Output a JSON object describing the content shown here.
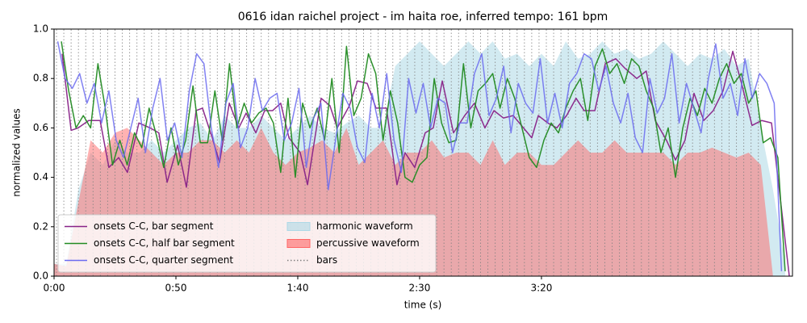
{
  "chart_data": {
    "type": "line",
    "title": "0616 idan raichel project - im haita roe, inferred tempo: 161 bpm",
    "x_label": "time (s)",
    "y_label": "normalized values",
    "xlim": [
      0,
      303
    ],
    "ylim": [
      0,
      1
    ],
    "xticks": [
      {
        "value": 0,
        "label": "0:00"
      },
      {
        "value": 50,
        "label": "0:50"
      },
      {
        "value": 100,
        "label": "1:40"
      },
      {
        "value": 150,
        "label": "2:30"
      },
      {
        "value": 200,
        "label": "3:20"
      }
    ],
    "yticks": [
      {
        "value": 0,
        "label": "0.0"
      },
      0.2,
      0.4,
      0.6,
      0.8,
      {
        "value": 1,
        "label": "1.0"
      }
    ],
    "legend": "lower left",
    "legend_columns": 2,
    "x": [
      0,
      5,
      10,
      15,
      20,
      25,
      30,
      35,
      40,
      45,
      50,
      55,
      60,
      65,
      70,
      75,
      80,
      85,
      90,
      95,
      100,
      105,
      110,
      115,
      120,
      125,
      130,
      135,
      140,
      145,
      150,
      155,
      160,
      165,
      170,
      175,
      180,
      185,
      190,
      195,
      200,
      205,
      210,
      215,
      220,
      225,
      230,
      235,
      240,
      245,
      250,
      255,
      260,
      265,
      270,
      275,
      280,
      285,
      290,
      295,
      300
    ],
    "series": [
      {
        "name": "onsets C-C, bar segment",
        "color": "#882288",
        "style": "line",
        "x": [
          3.3,
          7.0,
          9.9,
          14.2,
          18.9,
          22.5,
          26.5,
          30.1,
          34.8,
          39.4,
          43.0,
          46.4,
          50.7,
          54.3,
          58.3,
          60.9,
          64.9,
          67.9,
          71.9,
          75.8,
          78.8,
          82.8,
          86.4,
          89.7,
          93.0,
          96.4,
          101.0,
          104.0,
          109.6,
          113.2,
          116.2,
          121.2,
          124.5,
          128.5,
          132.1,
          136.4,
          140.7,
          144.0,
          148.0,
          152.3,
          155.6,
          159.3,
          163.9,
          168.5,
          172.5,
          176.8,
          180.5,
          184.4,
          188.4,
          196.0,
          198.7,
          202.6,
          206.3,
          210.3,
          214.2,
          217.5,
          221.9,
          226.2,
          230.5,
          234.4,
          239.1,
          243.0,
          246.7,
          251.3,
          255.0,
          258.9,
          262.6,
          266.6,
          270.5,
          274.5,
          278.5,
          282.1,
          286.4,
          290.4,
          294.4,
          301.7
        ],
        "values": [
          0.9,
          0.59,
          0.6,
          0.63,
          0.63,
          0.44,
          0.48,
          0.42,
          0.62,
          0.6,
          0.58,
          0.38,
          0.53,
          0.36,
          0.67,
          0.68,
          0.56,
          0.46,
          0.7,
          0.6,
          0.66,
          0.58,
          0.67,
          0.67,
          0.7,
          0.56,
          0.5,
          0.37,
          0.72,
          0.69,
          0.6,
          0.69,
          0.79,
          0.78,
          0.68,
          0.68,
          0.37,
          0.5,
          0.44,
          0.58,
          0.6,
          0.79,
          0.58,
          0.65,
          0.7,
          0.6,
          0.67,
          0.64,
          0.65,
          0.56,
          0.65,
          0.62,
          0.6,
          0.65,
          0.72,
          0.67,
          0.67,
          0.86,
          0.88,
          0.84,
          0.8,
          0.83,
          0.63,
          0.55,
          0.47,
          0.55,
          0.74,
          0.63,
          0.67,
          0.75,
          0.91,
          0.78,
          0.61,
          0.63,
          0.62,
          0.0
        ]
      },
      {
        "name": "onsets C-C, half bar segment",
        "color": "#228b22",
        "style": "line",
        "x": [
          3,
          6,
          9,
          12,
          15,
          18,
          21,
          24,
          27,
          30,
          33,
          36,
          39,
          42,
          45,
          48,
          51,
          54,
          57,
          60,
          63,
          66,
          69,
          72,
          75,
          78,
          81,
          84,
          87,
          90,
          93,
          96,
          99,
          102,
          105,
          108,
          111,
          114,
          117,
          120,
          123,
          126,
          129,
          132,
          135,
          138,
          141,
          144,
          147,
          150,
          153,
          156,
          159,
          162,
          165,
          168,
          171,
          174,
          177,
          180,
          183,
          186,
          189,
          192,
          195,
          198,
          201,
          204,
          207,
          210,
          213,
          216,
          219,
          222,
          225,
          228,
          231,
          234,
          237,
          240,
          243,
          246,
          249,
          252,
          255,
          258,
          261,
          264,
          267,
          270,
          273,
          276,
          279,
          282,
          285,
          288,
          291,
          294,
          297,
          300
        ],
        "values": [
          0.95,
          0.75,
          0.6,
          0.65,
          0.6,
          0.86,
          0.68,
          0.45,
          0.55,
          0.45,
          0.58,
          0.52,
          0.68,
          0.57,
          0.44,
          0.6,
          0.45,
          0.55,
          0.77,
          0.54,
          0.54,
          0.75,
          0.55,
          0.86,
          0.6,
          0.7,
          0.62,
          0.66,
          0.68,
          0.62,
          0.42,
          0.72,
          0.4,
          0.7,
          0.6,
          0.68,
          0.55,
          0.8,
          0.5,
          0.93,
          0.65,
          0.72,
          0.9,
          0.82,
          0.55,
          0.75,
          0.62,
          0.4,
          0.38,
          0.45,
          0.48,
          0.8,
          0.62,
          0.54,
          0.55,
          0.86,
          0.6,
          0.75,
          0.78,
          0.82,
          0.68,
          0.8,
          0.72,
          0.6,
          0.48,
          0.44,
          0.55,
          0.62,
          0.58,
          0.68,
          0.75,
          0.8,
          0.63,
          0.85,
          0.92,
          0.82,
          0.86,
          0.78,
          0.88,
          0.85,
          0.75,
          0.68,
          0.5,
          0.6,
          0.4,
          0.6,
          0.72,
          0.65,
          0.76,
          0.7,
          0.8,
          0.86,
          0.78,
          0.82,
          0.7,
          0.75,
          0.54,
          0.56,
          0.48,
          0.02
        ]
      },
      {
        "name": "onsets C-C, quarter segment",
        "color": "#6b6bf0",
        "style": "line",
        "x": [
          1.5,
          4.5,
          7.5,
          10.5,
          13.5,
          16.5,
          19.5,
          22.5,
          25.5,
          28.5,
          31.5,
          34.5,
          37.5,
          40.5,
          43.5,
          46.5,
          49.5,
          52.5,
          55.5,
          58.5,
          61.5,
          64.5,
          67.5,
          70.5,
          73.5,
          76.5,
          79.5,
          82.5,
          85.5,
          88.5,
          91.5,
          94.5,
          97.5,
          100.5,
          103.5,
          106.5,
          109.5,
          112.5,
          115.5,
          118.5,
          121.5,
          124.5,
          127.5,
          130.5,
          133.5,
          136.5,
          139.5,
          142.5,
          145.5,
          148.5,
          151.5,
          154.5,
          157.5,
          160.5,
          163.5,
          166.5,
          169.5,
          172.5,
          175.5,
          178.5,
          181.5,
          184.5,
          187.5,
          190.5,
          193.5,
          196.5,
          199.5,
          202.5,
          205.5,
          208.5,
          211.5,
          214.5,
          217.5,
          220.5,
          223.5,
          226.5,
          229.5,
          232.5,
          235.5,
          238.5,
          241.5,
          244.5,
          247.5,
          250.5,
          253.5,
          256.5,
          259.5,
          262.5,
          265.5,
          268.5,
          271.5,
          274.5,
          277.5,
          280.5,
          283.5,
          286.5,
          289.5,
          292.5,
          295.5,
          298.5
        ],
        "values": [
          0.95,
          0.8,
          0.76,
          0.82,
          0.7,
          0.78,
          0.62,
          0.75,
          0.55,
          0.48,
          0.6,
          0.72,
          0.5,
          0.68,
          0.8,
          0.55,
          0.62,
          0.48,
          0.75,
          0.9,
          0.86,
          0.6,
          0.44,
          0.7,
          0.78,
          0.52,
          0.6,
          0.8,
          0.67,
          0.72,
          0.74,
          0.55,
          0.62,
          0.76,
          0.44,
          0.64,
          0.7,
          0.35,
          0.55,
          0.74,
          0.68,
          0.52,
          0.46,
          0.74,
          0.6,
          0.82,
          0.55,
          0.42,
          0.8,
          0.66,
          0.78,
          0.6,
          0.72,
          0.7,
          0.5,
          0.62,
          0.62,
          0.82,
          0.9,
          0.65,
          0.72,
          0.85,
          0.58,
          0.78,
          0.7,
          0.66,
          0.88,
          0.62,
          0.74,
          0.6,
          0.78,
          0.82,
          0.9,
          0.88,
          0.75,
          0.85,
          0.7,
          0.62,
          0.74,
          0.56,
          0.5,
          0.8,
          0.66,
          0.72,
          0.9,
          0.62,
          0.78,
          0.68,
          0.58,
          0.8,
          0.94,
          0.72,
          0.78,
          0.65,
          0.88,
          0.72,
          0.82,
          0.78,
          0.7,
          0.02
        ]
      },
      {
        "name": "harmonic waveform",
        "color": "#add8e6",
        "style": "area",
        "values": [
          0.05,
          0.05,
          0.35,
          0.5,
          0.45,
          0.55,
          0.5,
          0.5,
          0.55,
          0.5,
          0.55,
          0.6,
          0.62,
          0.55,
          0.65,
          0.6,
          0.6,
          0.65,
          0.6,
          0.55,
          0.6,
          0.65,
          0.6,
          0.58,
          0.62,
          0.65,
          0.6,
          0.6,
          0.85,
          0.9,
          0.95,
          0.9,
          0.85,
          0.9,
          0.95,
          0.9,
          0.95,
          0.88,
          0.9,
          0.85,
          0.9,
          0.85,
          0.95,
          0.88,
          0.9,
          0.95,
          0.9,
          0.92,
          0.88,
          0.9,
          0.95,
          0.9,
          0.85,
          0.9,
          0.88,
          0.92,
          0.85,
          0.88,
          0.6,
          0.35,
          0.05
        ]
      },
      {
        "name": "percussive waveform",
        "color": "#ff6666",
        "style": "area",
        "values": [
          0.05,
          0.04,
          0.3,
          0.55,
          0.5,
          0.58,
          0.6,
          0.55,
          0.5,
          0.45,
          0.5,
          0.5,
          0.55,
          0.55,
          0.5,
          0.55,
          0.5,
          0.6,
          0.5,
          0.45,
          0.5,
          0.52,
          0.55,
          0.5,
          0.6,
          0.45,
          0.5,
          0.55,
          0.45,
          0.5,
          0.5,
          0.55,
          0.48,
          0.5,
          0.5,
          0.45,
          0.55,
          0.45,
          0.5,
          0.5,
          0.45,
          0.45,
          0.5,
          0.55,
          0.5,
          0.5,
          0.55,
          0.5,
          0.5,
          0.5,
          0.5,
          0.45,
          0.5,
          0.5,
          0.52,
          0.5,
          0.48,
          0.5,
          0.45,
          0.0,
          0.0
        ]
      },
      {
        "name": "bars",
        "color": "#808080",
        "style": "vlines",
        "x": [
          1,
          4,
          7,
          10,
          13,
          16,
          19,
          22,
          25,
          28,
          31,
          34,
          37,
          40,
          43,
          46,
          49,
          52,
          55,
          58,
          61,
          64,
          67,
          70,
          73,
          76,
          79,
          82,
          85,
          88,
          91,
          94,
          97,
          100,
          103,
          106,
          109,
          112,
          115,
          118,
          121,
          124,
          127,
          130,
          133,
          136,
          139,
          142,
          145,
          148,
          151,
          154,
          157,
          160,
          163,
          166,
          169,
          172,
          175,
          178,
          181,
          184,
          187,
          190,
          193,
          196,
          199,
          202,
          205,
          208,
          211,
          214,
          217,
          220,
          223,
          226,
          229,
          232,
          235,
          238,
          241,
          244,
          247,
          250,
          253,
          256,
          259,
          262,
          265,
          268,
          271,
          274,
          277,
          280,
          283,
          286,
          289
        ]
      }
    ]
  }
}
